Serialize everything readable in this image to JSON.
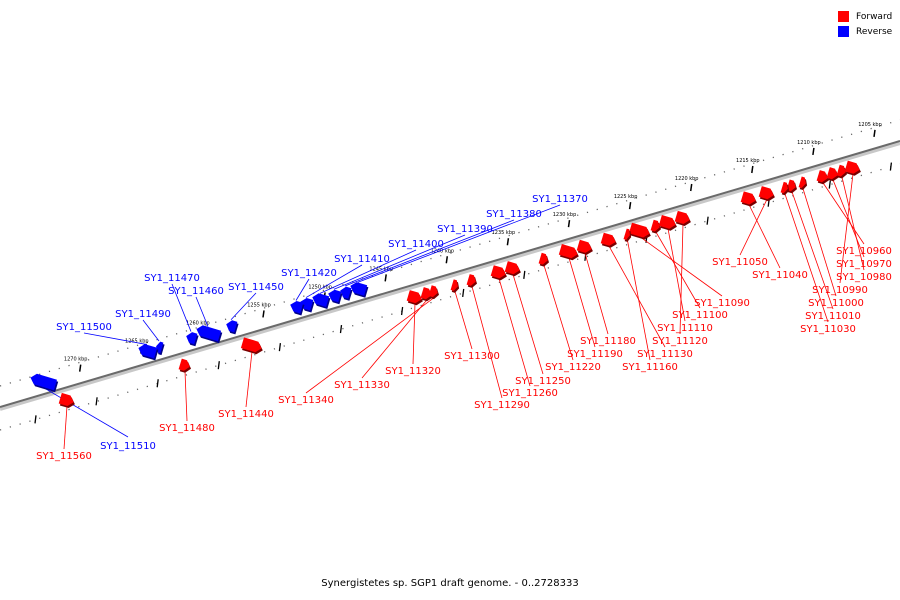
{
  "legend": [
    {
      "label": "Forward",
      "color": "#ff0000"
    },
    {
      "label": "Reverse",
      "color": "#0000ff"
    }
  ],
  "footer": "Synergistetes sp. SGP1 draft genome. - 0..2728333",
  "ticks": [
    "1205 kbp",
    "1210 kbp",
    "1215 kbp",
    "1220 kbp",
    "1225 kbp",
    "1230 kbp",
    "1235 kbp",
    "1240 kbp",
    "1245 kbp",
    "1250 kbp",
    "1255 kbp",
    "1260 kbp",
    "1265 kbp",
    "1270 kbp"
  ],
  "forward_genes": [
    "SY1_10960",
    "SY1_10970",
    "SY1_10980",
    "SY1_10990",
    "SY1_11000",
    "SY1_11010",
    "SY1_11030",
    "SY1_11040",
    "SY1_11050",
    "SY1_11090",
    "SY1_11100",
    "SY1_11110",
    "SY1_11120",
    "SY1_11130",
    "SY1_11160",
    "SY1_11180",
    "SY1_11190",
    "SY1_11220",
    "SY1_11250",
    "SY1_11260",
    "SY1_11290",
    "SY1_11300",
    "SY1_11320",
    "SY1_11330",
    "SY1_11340",
    "SY1_11440",
    "SY1_11480",
    "SY1_11560"
  ],
  "reverse_genes": [
    "SY1_11370",
    "SY1_11380",
    "SY1_11390",
    "SY1_11400",
    "SY1_11410",
    "SY1_11420",
    "SY1_11450",
    "SY1_11460",
    "SY1_11470",
    "SY1_11490",
    "SY1_11500",
    "SY1_11510"
  ]
}
